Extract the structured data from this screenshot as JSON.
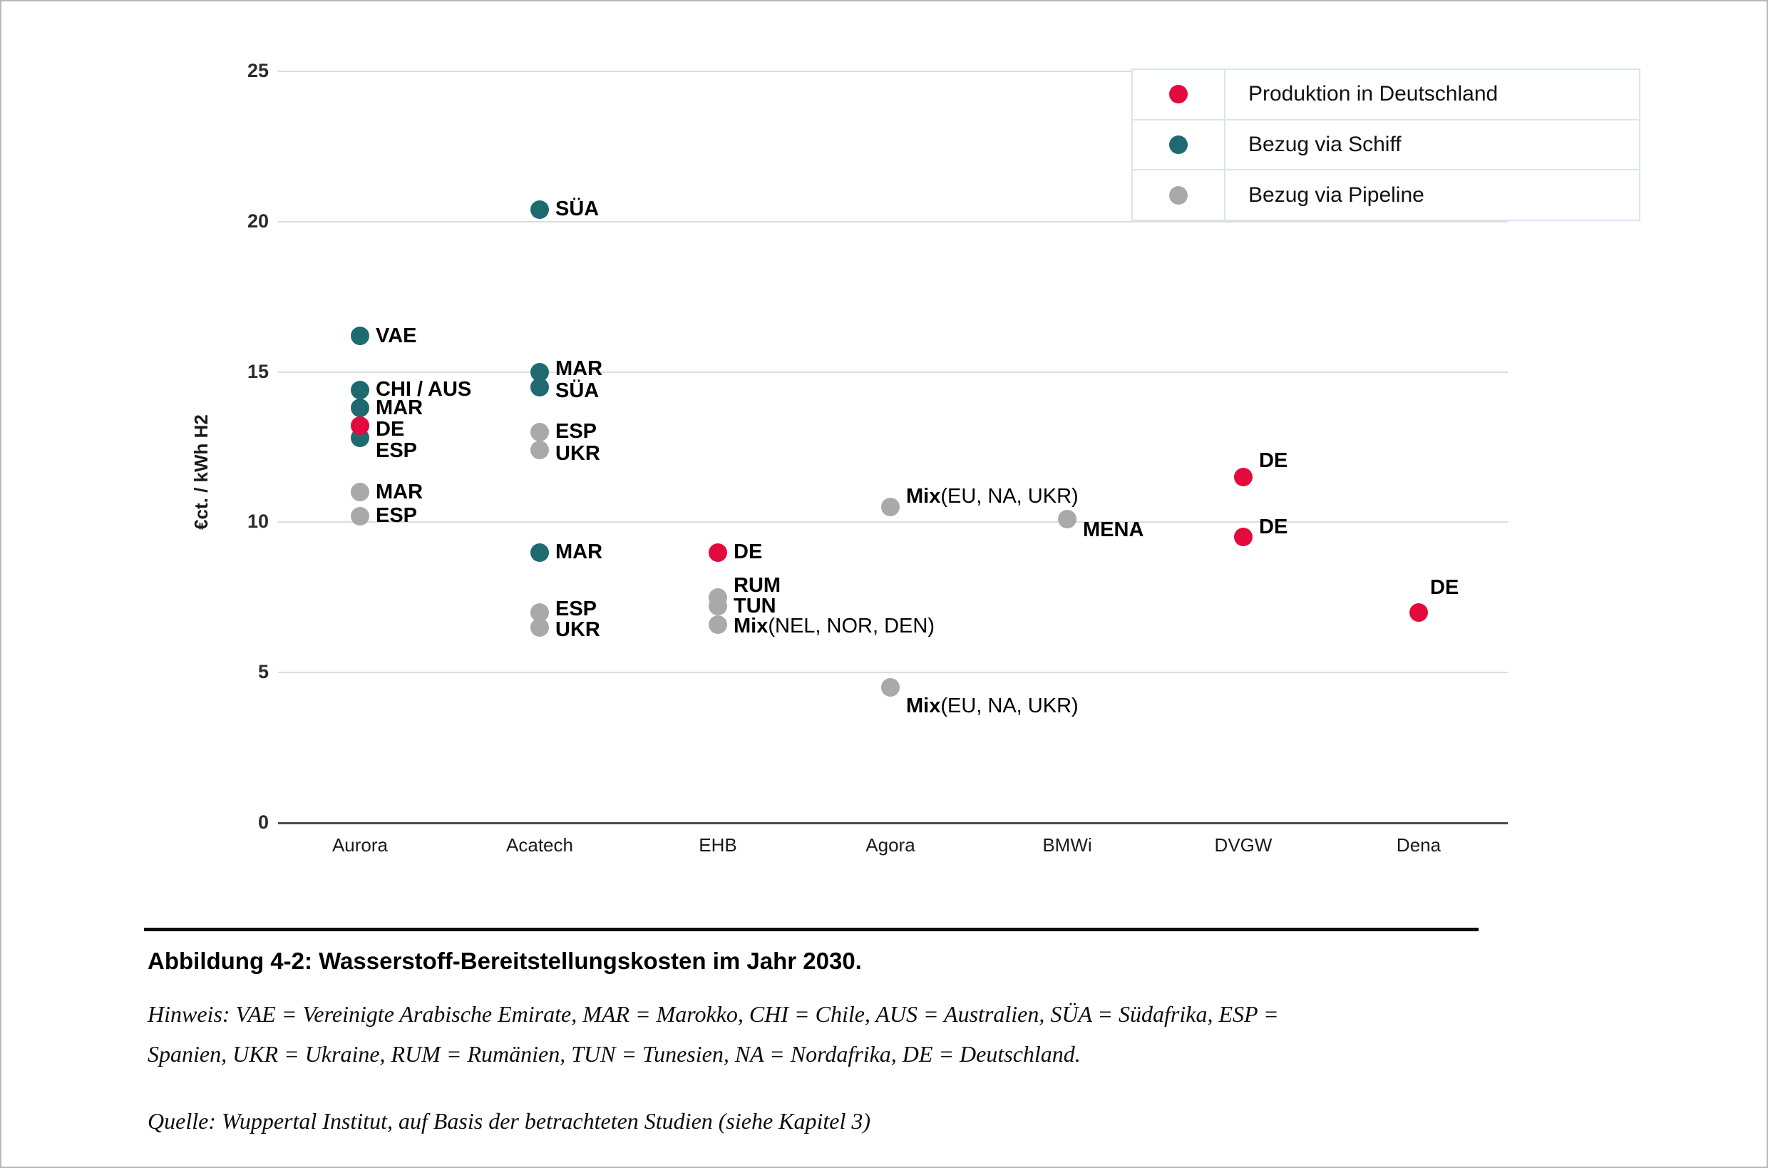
{
  "figure": {
    "caption": "Abbildung 4-2: Wasserstoff-Bereitstellungskosten im Jahr 2030.",
    "note_line1": "Hinweis: VAE = Vereinigte Arabische Emirate, MAR = Marokko, CHI = Chile, AUS = Australien, SÜA = Südafrika, ESP =",
    "note_line2": "Spanien, UKR = Ukraine, RUM = Rumänien, TUN = Tunesien, NA = Nordafrika, DE = Deutschland.",
    "source": "Quelle: Wuppertal Institut, auf Basis der betrachteten Studien (siehe Kapitel 3)"
  },
  "chart_data": {
    "type": "scatter",
    "ylabel": "€ct. / kWh H2",
    "ylim": [
      0,
      25
    ],
    "yticks": [
      0,
      5,
      10,
      15,
      20,
      25
    ],
    "grid": true,
    "legend_position": "top-right",
    "categories": [
      "Aurora",
      "Acatech",
      "EHB",
      "Agora",
      "BMWi",
      "DVGW",
      "Dena"
    ],
    "series": [
      {
        "id": "produktion",
        "label": "Produktion in Deutschland",
        "color": "#e30b3d"
      },
      {
        "id": "schiff",
        "label": "Bezug via Schiff",
        "color": "#1f6a71"
      },
      {
        "id": "pipeline",
        "label": "Bezug via Pipeline",
        "color": "#a9a9a9"
      }
    ],
    "points": [
      {
        "study": "Aurora",
        "series": "schiff",
        "value": 16.2,
        "label": "VAE"
      },
      {
        "study": "Aurora",
        "series": "schiff",
        "value": 14.4,
        "label": "CHI / AUS"
      },
      {
        "study": "Aurora",
        "series": "schiff",
        "value": 13.8,
        "label": "MAR"
      },
      {
        "study": "Aurora",
        "series": "produktion",
        "value": 13.2,
        "label": "DE",
        "label_dy": 5
      },
      {
        "study": "Aurora",
        "series": "schiff",
        "value": 12.8,
        "label": "ESP",
        "label_dy": 18
      },
      {
        "study": "Aurora",
        "series": "pipeline",
        "value": 11.0,
        "label": "MAR"
      },
      {
        "study": "Aurora",
        "series": "pipeline",
        "value": 10.2,
        "label": "ESP"
      },
      {
        "study": "Acatech",
        "series": "schiff",
        "value": 20.4,
        "label": "SÜA"
      },
      {
        "study": "Acatech",
        "series": "schiff",
        "value": 15.0,
        "label": "MAR",
        "label_dy": -4
      },
      {
        "study": "Acatech",
        "series": "schiff",
        "value": 14.5,
        "label": "SÜA",
        "label_dy": 6
      },
      {
        "study": "Acatech",
        "series": "pipeline",
        "value": 13.0,
        "label": "ESP"
      },
      {
        "study": "Acatech",
        "series": "pipeline",
        "value": 12.4,
        "label": "UKR",
        "label_dy": 5
      },
      {
        "study": "Acatech",
        "series": "schiff",
        "value": 9.0,
        "label": "MAR"
      },
      {
        "study": "Acatech",
        "series": "pipeline",
        "value": 7.0,
        "label": "ESP",
        "label_dy": -4
      },
      {
        "study": "Acatech",
        "series": "pipeline",
        "value": 6.5,
        "label": "UKR",
        "label_dy": 4
      },
      {
        "study": "EHB",
        "series": "produktion",
        "value": 9.0,
        "label": "DE"
      },
      {
        "study": "EHB",
        "series": "pipeline",
        "value": 7.5,
        "label": "RUM",
        "label_dy": -16
      },
      {
        "study": "EHB",
        "series": "pipeline",
        "value": 7.2,
        "label": "TUN"
      },
      {
        "study": "EHB",
        "series": "pipeline",
        "value": 6.6,
        "label": "Mix",
        "label_rest": " (NEL, NOR, DEN)",
        "label_dy": 3
      },
      {
        "study": "Agora",
        "series": "pipeline",
        "value": 10.5,
        "label": "Mix",
        "label_rest": " (EU, NA, UKR)",
        "label_dy": -15
      },
      {
        "study": "Agora",
        "series": "pipeline",
        "value": 4.5,
        "label": "Mix",
        "label_rest": " (EU, NA, UKR)",
        "label_dy": 26
      },
      {
        "study": "BMWi",
        "series": "pipeline",
        "value": 10.1,
        "label": "MENA",
        "label_dy": 15
      },
      {
        "study": "DVGW",
        "series": "produktion",
        "value": 11.5,
        "label": "DE",
        "label_dy": -23
      },
      {
        "study": "DVGW",
        "series": "produktion",
        "value": 9.5,
        "label": "DE",
        "label_dy": -14
      },
      {
        "study": "Dena",
        "series": "produktion",
        "value": 7.0,
        "label": "DE",
        "label_dy": -34,
        "label_dx": 16
      }
    ]
  }
}
